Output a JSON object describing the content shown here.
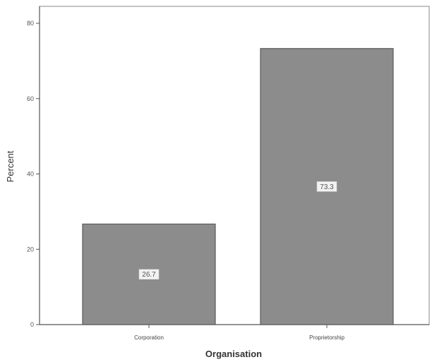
{
  "chart_data": {
    "type": "bar",
    "categories": [
      "Corporation",
      "Proprietorship"
    ],
    "values": [
      26.7,
      73.3
    ],
    "data_labels": [
      "26.7",
      "73.3"
    ],
    "title": "",
    "xlabel": "Organisation",
    "ylabel": "Percent",
    "ylim": [
      0,
      80
    ],
    "yticks": [
      0,
      20,
      40,
      60,
      80
    ],
    "grid": false,
    "legend": "none",
    "bar_color": "#8c8c8c",
    "bar_edge_color": "#5a5a5a",
    "axis_color": "#555555"
  }
}
